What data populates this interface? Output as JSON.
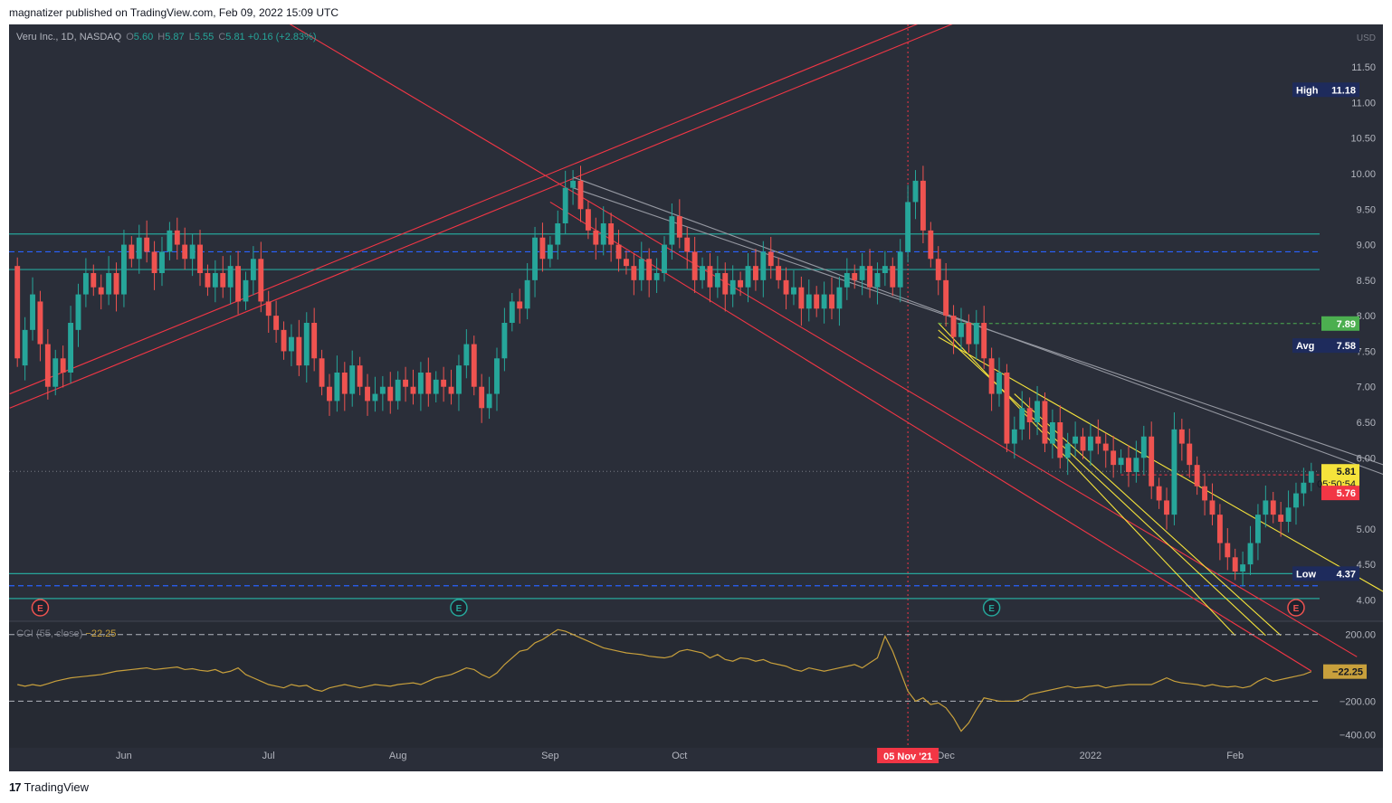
{
  "header": {
    "text": "magnatizer published on TradingView.com, Feb 09, 2022 15:09 UTC"
  },
  "footer": {
    "logo_text": "TradingView"
  },
  "legend": {
    "symbol": "Veru Inc., 1D, NASDAQ",
    "o_key": "O",
    "o": "5.60",
    "h_key": "H",
    "h": "5.87",
    "l_key": "L",
    "l": "5.55",
    "c_key": "C",
    "c": "5.81",
    "change": "+0.16 (+2.83%)"
  },
  "cci_legend": {
    "name": "CCI (55, close)",
    "value": "−22.25"
  },
  "currency": "USD",
  "colors": {
    "bg": "#2a2e39",
    "up": "#26a69a",
    "down": "#ef5350",
    "teal_line": "#26a69a",
    "red_line": "#f23645",
    "yellow_line": "#f5e33b",
    "grey_line": "#9598a1",
    "cci_line": "#c8a03c"
  },
  "chart_data": [
    {
      "type": "candlestick",
      "title": "Veru Inc., 1D, NASDAQ",
      "y_ticks": [
        "11.50",
        "11.00",
        "10.50",
        "10.00",
        "9.50",
        "9.00",
        "8.50",
        "8.00",
        "7.50",
        "7.00",
        "6.50",
        "6.00",
        "5.00",
        "4.50",
        "4.00"
      ],
      "ylim": [
        3.7,
        12.1
      ],
      "x_ticks": [
        "Jun",
        "Jul",
        "Aug",
        "Sep",
        "Oct",
        "Dec",
        "2022",
        "Feb"
      ],
      "x_highlight": "05 Nov '21",
      "price_labels": {
        "high": {
          "label": "High",
          "value": "11.18"
        },
        "low": {
          "label": "Low",
          "value": "4.37"
        },
        "avg": {
          "label": "Avg",
          "value": "7.58"
        },
        "green": {
          "value": "7.89"
        },
        "last": {
          "value": "5.81",
          "countdown": "05:50:54"
        },
        "red": {
          "value": "5.76"
        }
      },
      "horizontal_levels": [
        9.15,
        8.65,
        4.37,
        4.02
      ],
      "dashed_levels": [
        8.9,
        4.2
      ],
      "earnings_markers": [
        "E",
        "E",
        "E",
        "E"
      ],
      "candles": [
        [
          8.7,
          7.4
        ],
        [
          7.3,
          7.8
        ],
        [
          7.8,
          8.3
        ],
        [
          8.2,
          7.6
        ],
        [
          7.6,
          7.0
        ],
        [
          7.0,
          7.4
        ],
        [
          7.4,
          7.2
        ],
        [
          7.2,
          7.9
        ],
        [
          7.8,
          8.3
        ],
        [
          8.3,
          8.6
        ],
        [
          8.6,
          8.4
        ],
        [
          8.4,
          8.3
        ],
        [
          8.3,
          8.6
        ],
        [
          8.6,
          8.3
        ],
        [
          8.3,
          9.0
        ],
        [
          9.0,
          8.8
        ],
        [
          8.8,
          9.1
        ],
        [
          9.1,
          8.9
        ],
        [
          8.9,
          8.6
        ],
        [
          8.6,
          8.9
        ],
        [
          8.9,
          9.2
        ],
        [
          9.2,
          9.0
        ],
        [
          9.0,
          8.8
        ],
        [
          8.8,
          9.0
        ],
        [
          9.0,
          8.6
        ],
        [
          8.6,
          8.4
        ],
        [
          8.4,
          8.6
        ],
        [
          8.6,
          8.4
        ],
        [
          8.4,
          8.7
        ],
        [
          8.7,
          8.2
        ],
        [
          8.2,
          8.5
        ],
        [
          8.5,
          8.8
        ],
        [
          8.8,
          8.2
        ],
        [
          8.2,
          8.0
        ],
        [
          8.0,
          7.8
        ],
        [
          7.8,
          7.5
        ],
        [
          7.5,
          7.7
        ],
        [
          7.7,
          7.3
        ],
        [
          7.3,
          7.9
        ],
        [
          7.9,
          7.4
        ],
        [
          7.4,
          7.0
        ],
        [
          7.0,
          6.8
        ],
        [
          6.8,
          7.2
        ],
        [
          7.2,
          6.9
        ],
        [
          6.9,
          7.3
        ],
        [
          7.3,
          7.0
        ],
        [
          7.0,
          6.8
        ],
        [
          6.8,
          6.9
        ],
        [
          6.9,
          7.0
        ],
        [
          7.0,
          6.8
        ],
        [
          6.8,
          7.1
        ],
        [
          7.1,
          7.0
        ],
        [
          7.0,
          6.9
        ],
        [
          6.9,
          7.2
        ],
        [
          7.2,
          6.9
        ],
        [
          6.9,
          7.1
        ],
        [
          7.1,
          7.0
        ],
        [
          7.0,
          6.9
        ],
        [
          6.9,
          7.3
        ],
        [
          7.3,
          7.6
        ],
        [
          7.6,
          7.0
        ],
        [
          7.0,
          6.7
        ],
        [
          6.7,
          6.9
        ],
        [
          6.9,
          7.4
        ],
        [
          7.4,
          7.9
        ],
        [
          7.9,
          8.2
        ],
        [
          8.2,
          8.1
        ],
        [
          8.1,
          8.5
        ],
        [
          8.5,
          9.1
        ],
        [
          9.1,
          8.8
        ],
        [
          8.8,
          9.0
        ],
        [
          9.0,
          9.3
        ],
        [
          9.3,
          9.8
        ],
        [
          9.8,
          9.9
        ],
        [
          9.9,
          9.5
        ],
        [
          9.5,
          9.2
        ],
        [
          9.2,
          9.0
        ],
        [
          9.0,
          9.3
        ],
        [
          9.3,
          9.0
        ],
        [
          9.0,
          8.8
        ],
        [
          8.8,
          8.7
        ],
        [
          8.7,
          8.5
        ],
        [
          8.5,
          8.8
        ],
        [
          8.8,
          8.5
        ],
        [
          8.5,
          8.6
        ],
        [
          8.6,
          9.0
        ],
        [
          9.0,
          9.4
        ],
        [
          9.4,
          9.1
        ],
        [
          9.1,
          8.9
        ],
        [
          8.9,
          8.5
        ],
        [
          8.5,
          8.7
        ],
        [
          8.7,
          8.4
        ],
        [
          8.4,
          8.6
        ],
        [
          8.6,
          8.3
        ],
        [
          8.3,
          8.5
        ],
        [
          8.5,
          8.4
        ],
        [
          8.4,
          8.7
        ],
        [
          8.7,
          8.5
        ],
        [
          8.5,
          8.9
        ],
        [
          8.9,
          8.7
        ],
        [
          8.7,
          8.5
        ],
        [
          8.5,
          8.3
        ],
        [
          8.3,
          8.4
        ],
        [
          8.4,
          8.1
        ],
        [
          8.1,
          8.3
        ],
        [
          8.3,
          8.1
        ],
        [
          8.1,
          8.3
        ],
        [
          8.3,
          8.1
        ],
        [
          8.1,
          8.4
        ],
        [
          8.4,
          8.6
        ],
        [
          8.6,
          8.5
        ],
        [
          8.5,
          8.7
        ],
        [
          8.7,
          8.4
        ],
        [
          8.4,
          8.6
        ],
        [
          8.6,
          8.7
        ],
        [
          8.7,
          8.4
        ],
        [
          8.4,
          8.9
        ],
        [
          8.9,
          9.6
        ],
        [
          9.6,
          9.9
        ],
        [
          9.9,
          9.2
        ],
        [
          9.2,
          8.8
        ],
        [
          8.8,
          8.5
        ],
        [
          8.5,
          8.0
        ],
        [
          8.0,
          7.7
        ],
        [
          7.7,
          7.9
        ],
        [
          7.9,
          7.6
        ],
        [
          7.6,
          7.9
        ],
        [
          7.9,
          7.4
        ],
        [
          7.4,
          6.9
        ],
        [
          6.9,
          7.2
        ],
        [
          7.2,
          6.2
        ],
        [
          6.2,
          6.4
        ],
        [
          6.4,
          6.7
        ],
        [
          6.7,
          6.5
        ],
        [
          6.5,
          6.8
        ],
        [
          6.8,
          6.2
        ],
        [
          6.2,
          6.5
        ],
        [
          6.5,
          6.0
        ],
        [
          6.0,
          6.2
        ],
        [
          6.2,
          6.3
        ],
        [
          6.3,
          6.1
        ],
        [
          6.1,
          6.3
        ],
        [
          6.3,
          6.2
        ],
        [
          6.2,
          6.1
        ],
        [
          6.1,
          5.9
        ],
        [
          5.9,
          6.0
        ],
        [
          6.0,
          5.8
        ],
        [
          5.8,
          6.0
        ],
        [
          6.0,
          6.3
        ],
        [
          6.3,
          5.6
        ],
        [
          5.6,
          5.4
        ],
        [
          5.4,
          5.2
        ],
        [
          5.2,
          6.4
        ],
        [
          6.4,
          6.2
        ],
        [
          6.2,
          5.9
        ],
        [
          5.9,
          5.6
        ],
        [
          5.6,
          5.4
        ],
        [
          5.4,
          5.2
        ],
        [
          5.2,
          4.8
        ],
        [
          4.8,
          4.6
        ],
        [
          4.6,
          4.4
        ],
        [
          4.4,
          4.5
        ],
        [
          4.5,
          4.8
        ],
        [
          4.8,
          5.2
        ],
        [
          5.2,
          5.4
        ],
        [
          5.4,
          5.2
        ],
        [
          5.2,
          5.1
        ],
        [
          5.1,
          5.3
        ],
        [
          5.3,
          5.5
        ],
        [
          5.5,
          5.65
        ],
        [
          5.65,
          5.81
        ]
      ]
    },
    {
      "type": "line",
      "title": "CCI (55, close)",
      "y_ticks": [
        "200.00",
        "−200.00",
        "−400.00"
      ],
      "last_value": "−22.25",
      "ylim": [
        -480,
        280
      ],
      "dashed_levels": [
        200,
        -200
      ],
      "values": [
        -100,
        -110,
        -100,
        -108,
        -95,
        -80,
        -70,
        -60,
        -55,
        -50,
        -45,
        -40,
        -30,
        -20,
        -15,
        -10,
        -5,
        0,
        -10,
        -5,
        0,
        5,
        -10,
        -5,
        -15,
        -20,
        -10,
        -30,
        -20,
        0,
        -40,
        -60,
        -80,
        -100,
        -110,
        -120,
        -100,
        -110,
        -105,
        -130,
        -140,
        -120,
        -110,
        -100,
        -110,
        -120,
        -110,
        -100,
        -105,
        -110,
        -100,
        -95,
        -90,
        -100,
        -80,
        -60,
        -50,
        -40,
        -20,
        0,
        -10,
        -40,
        -60,
        -30,
        20,
        60,
        100,
        110,
        150,
        170,
        200,
        230,
        220,
        200,
        180,
        160,
        140,
        120,
        110,
        100,
        90,
        85,
        80,
        70,
        65,
        60,
        70,
        100,
        110,
        100,
        90,
        60,
        80,
        50,
        40,
        60,
        55,
        40,
        50,
        30,
        20,
        10,
        -10,
        -20,
        0,
        -10,
        -20,
        -10,
        0,
        10,
        20,
        0,
        30,
        60,
        190,
        100,
        -20,
        -140,
        -200,
        -180,
        -220,
        -210,
        -240,
        -300,
        -380,
        -330,
        -250,
        -180,
        -190,
        -200,
        -200,
        -200,
        -190,
        -160,
        -150,
        -140,
        -130,
        -120,
        -110,
        -120,
        -115,
        -110,
        -105,
        -120,
        -110,
        -105,
        -100,
        -100,
        -100,
        -100,
        -80,
        -60,
        -80,
        -90,
        -95,
        -100,
        -110,
        -100,
        -110,
        -115,
        -110,
        -120,
        -110,
        -80,
        -60,
        -80,
        -70,
        -60,
        -50,
        -40,
        -22.25
      ]
    }
  ]
}
